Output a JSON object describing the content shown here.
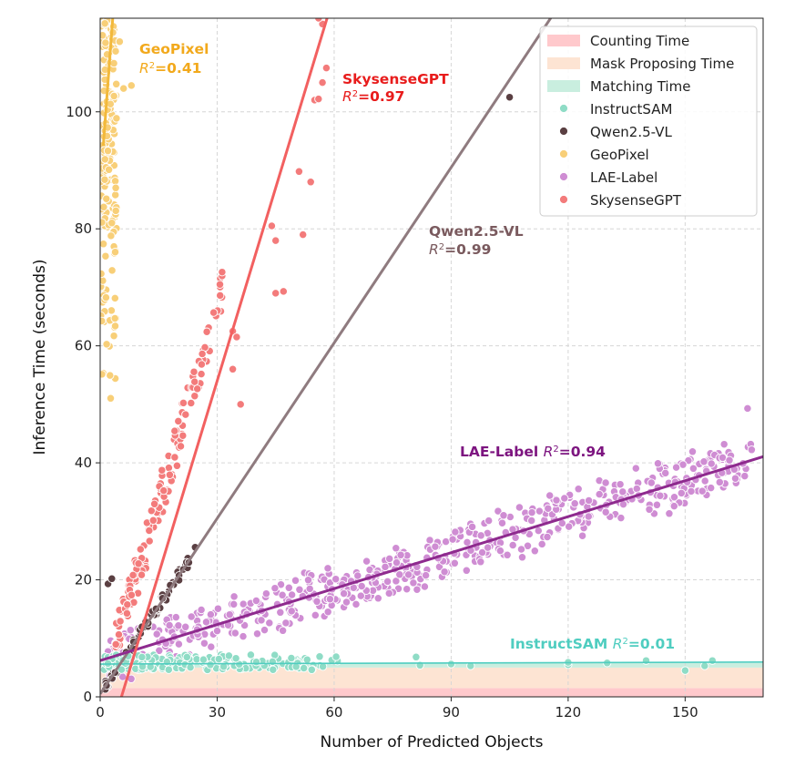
{
  "chart_data": {
    "type": "scatter",
    "xlabel": "Number of Predicted Objects",
    "ylabel": "Inference Time (seconds)",
    "xlim": [
      0,
      170
    ],
    "ylim": [
      0,
      116
    ],
    "xticks": [
      0,
      30,
      60,
      90,
      120,
      150
    ],
    "yticks": [
      0,
      20,
      40,
      60,
      80,
      100
    ],
    "grid": true,
    "legend_position": "top-right",
    "bands": [
      {
        "name": "Counting Time",
        "from": 0,
        "to": 1.5,
        "color": "#ffc9cc"
      },
      {
        "name": "Mask Proposing Time",
        "from": 1.5,
        "to": 5.0,
        "color": "#fde4d3"
      },
      {
        "name": "Matching Time",
        "from": 5.0,
        "to": 5.8,
        "color": "#c9eedf"
      }
    ],
    "series": [
      {
        "name": "InstructSAM",
        "color": "#8fdcc6",
        "line_color": "#4fcdc0",
        "fit": {
          "slope": 0.002,
          "intercept": 5.6
        },
        "r2_label": "0.01"
      },
      {
        "name": "Qwen2.5-VL",
        "color": "#5a3f42",
        "line_color": "#8f7b7f",
        "fit": {
          "slope": 1.0,
          "intercept": 0.5
        },
        "r2_label": "0.99"
      },
      {
        "name": "GeoPixel",
        "color": "#f8cf78",
        "line_color": "#f2b93b",
        "fit": {
          "slope": 9.0,
          "intercept": 87.0
        },
        "r2_label": "0.41"
      },
      {
        "name": "LAE-Label",
        "color": "#cf8dd3",
        "line_color": "#8e2a8e",
        "fit": {
          "slope": 0.205,
          "intercept": 6.2
        },
        "r2_label": "0.94"
      },
      {
        "name": "SkysenseGPT",
        "color": "#f37b7b",
        "line_color": "#f26060",
        "fit": {
          "slope": 2.2,
          "intercept": -12.0
        },
        "r2_label": "0.97"
      }
    ]
  },
  "legend": {
    "counting": "Counting Time",
    "mask": "Mask Proposing Time",
    "matching": "Matching Time",
    "instructsam": "InstructSAM",
    "qwen": "Qwen2.5-VL",
    "geopixel": "GeoPixel",
    "lae": "LAE-Label",
    "skysense": "SkysenseGPT"
  },
  "annotations": {
    "geopixel_name": "GeoPixel",
    "skysense_name": "SkysenseGPT",
    "qwen_name": "Qwen2.5-VL",
    "lae_name": "LAE-Label",
    "instructsam_name": "InstructSAM",
    "r2_symbol": "R",
    "r2_exp": "2",
    "geopixel_r2": "=0.41",
    "skysense_r2": "=0.97",
    "qwen_r2": "=0.99",
    "lae_r2": "=0.94",
    "instructsam_r2": "=0.01",
    "colors": {
      "geopixel": "#f2a91c",
      "skysense": "#e81c1c",
      "qwen": "#7a5a5e",
      "lae": "#7d1580",
      "instructsam": "#4fcdc0"
    }
  }
}
